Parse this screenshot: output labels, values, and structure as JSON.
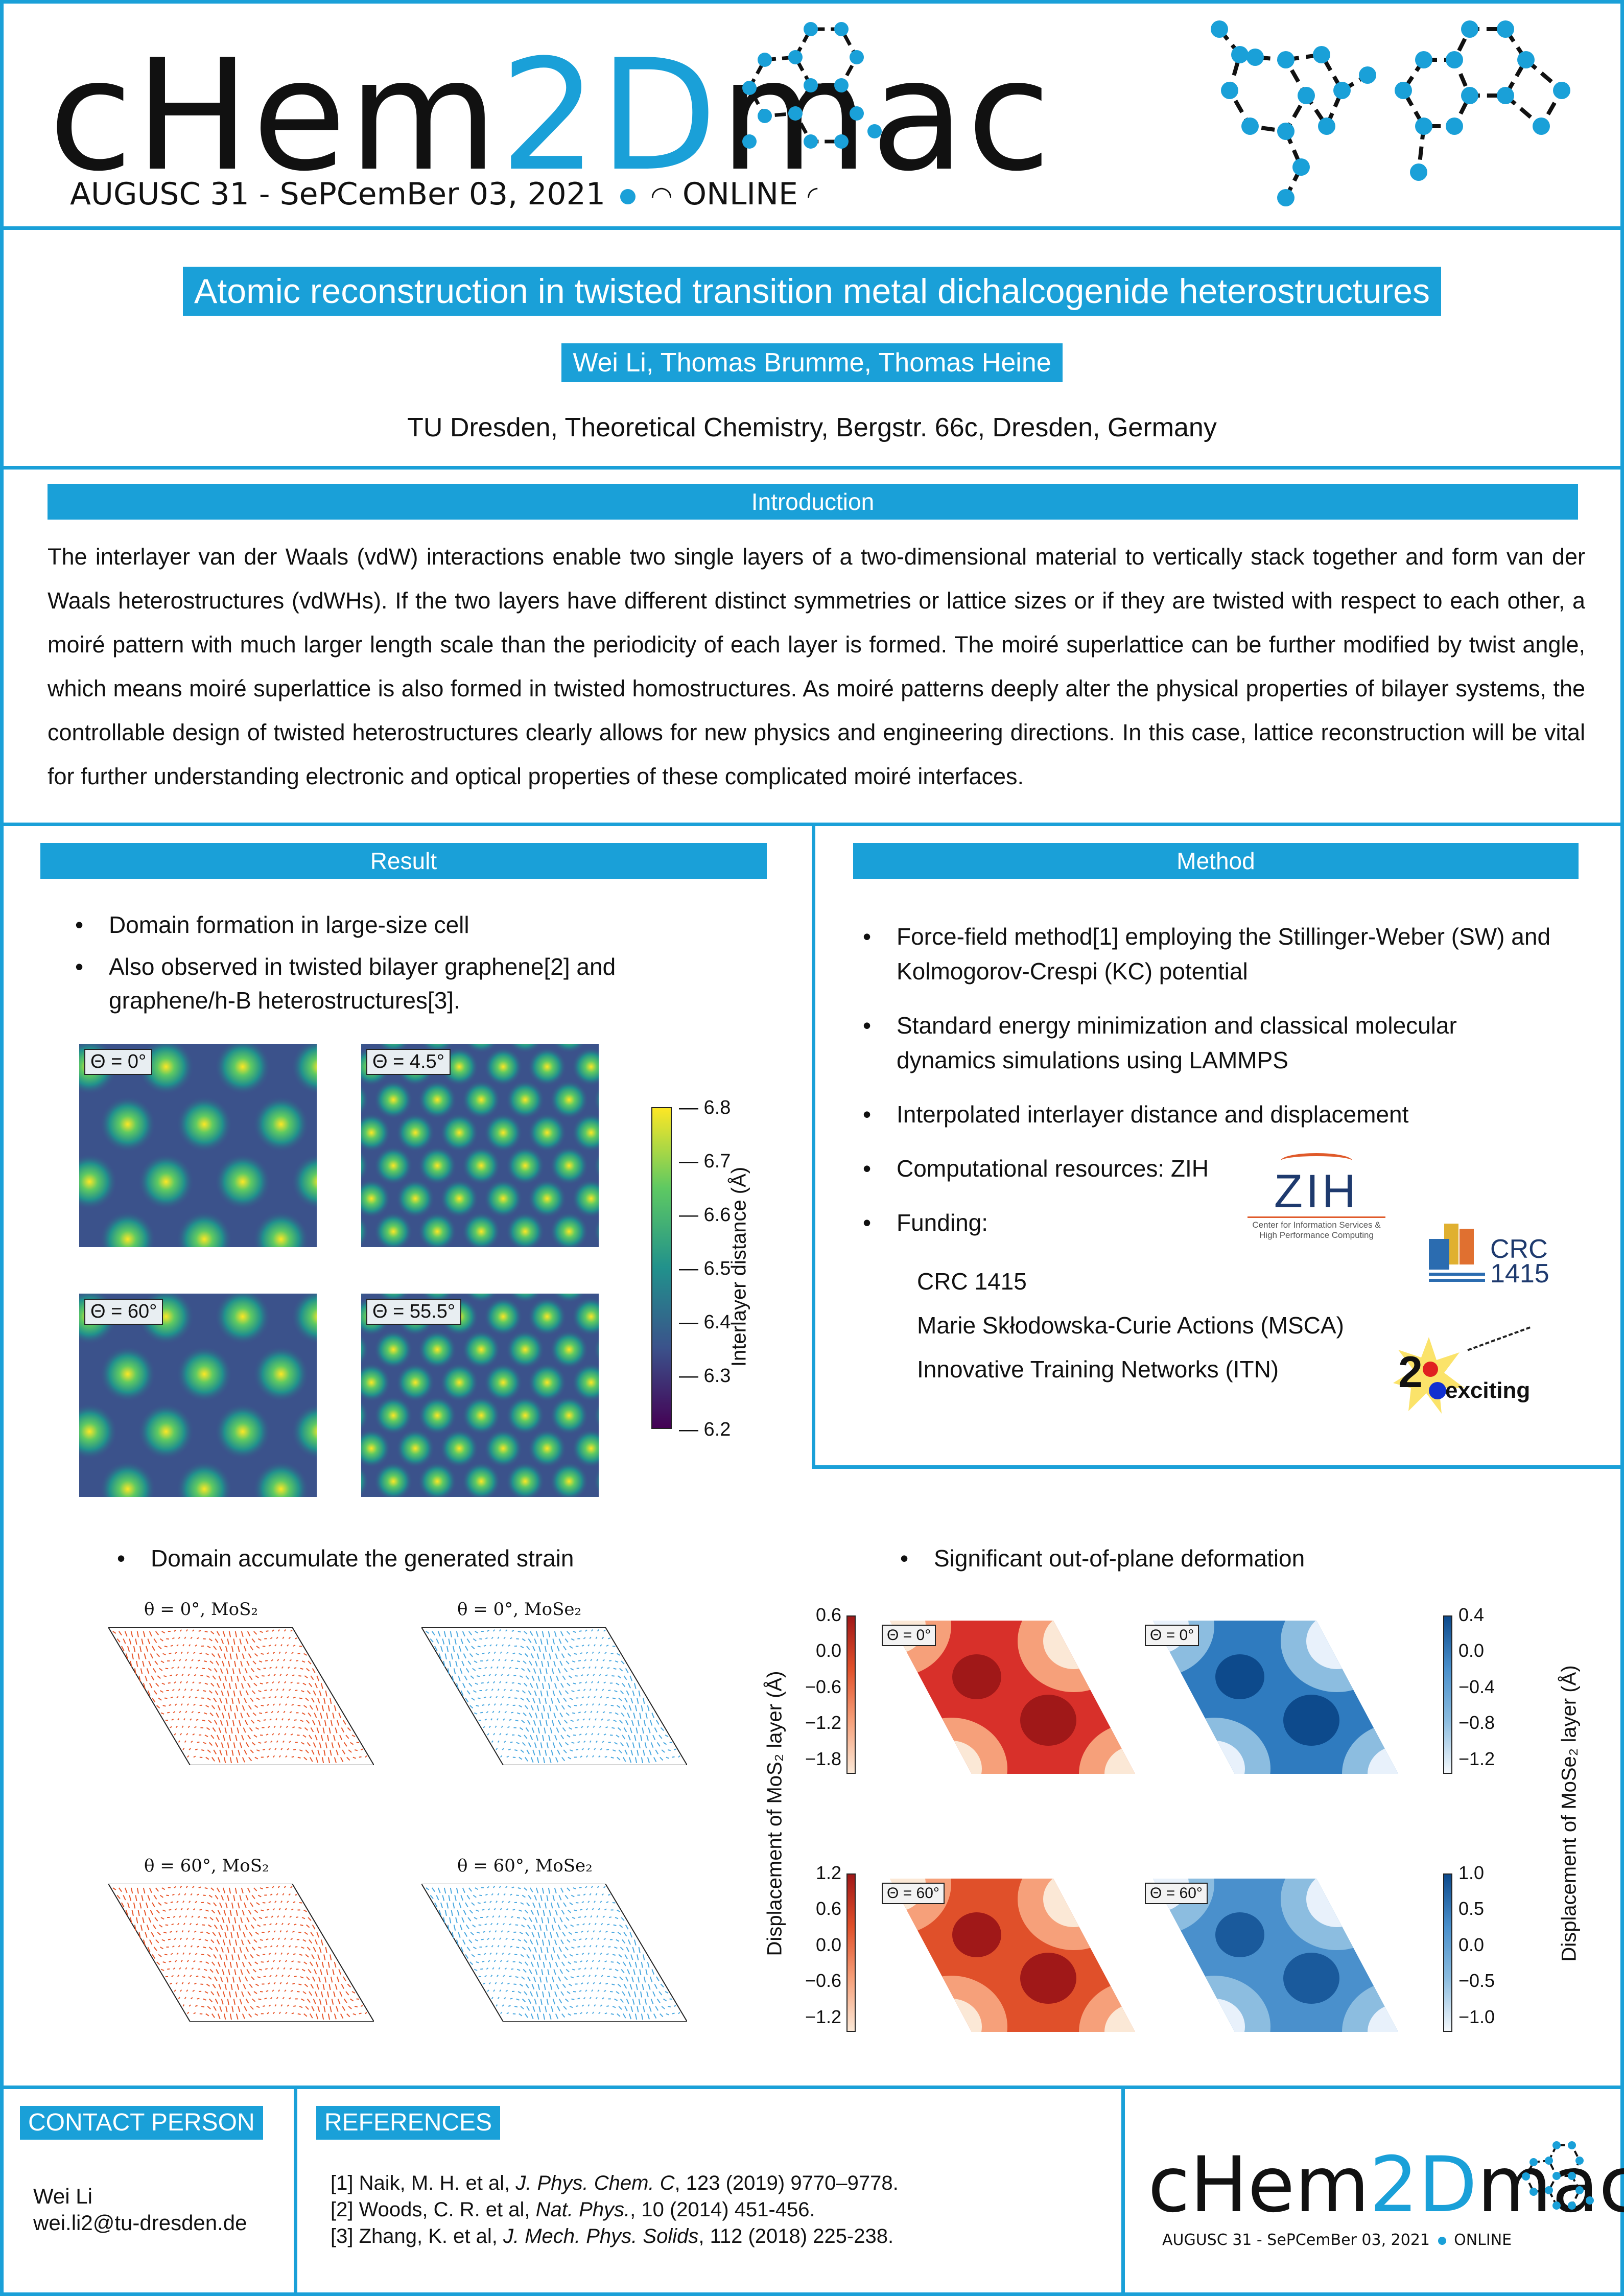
{
  "header": {
    "logo_part1": "cHem",
    "logo_part2": "2D",
    "logo_part3": "mac",
    "dates": "AUGUSC 31 - SePCemBer 03, 2021",
    "online": "ONLINE"
  },
  "title": "Atomic reconstruction in twisted transition metal dichalcogenide heterostructures",
  "authors": "Wei Li, Thomas Brumme, Thomas Heine",
  "affiliation": "TU Dresden, Theoretical Chemistry, Bergstr. 66c, Dresden, Germany",
  "intro": {
    "heading": "Introduction",
    "text": "The interlayer van der Waals (vdW) interactions enable two single layers of a two-dimensional material to vertically stack together and form van der Waals heterostructures (vdWHs). If the two layers have different distinct symmetries or lattice sizes or if they are twisted with respect to each other, a moiré pattern with much larger length scale than the periodicity of each layer is formed. The moiré superlattice can be further modified by twist angle, which means moiré superlattice is also formed in twisted homostructures. As moiré patterns deeply alter the physical properties of bilayer systems, the controllable design of twisted heterostructures clearly allows for new physics and engineering directions. In this case, lattice reconstruction will be vital for further understanding electronic and optical properties of these complicated moiré interfaces."
  },
  "result": {
    "heading": "Result",
    "bullets": [
      "Domain formation in large-size cell",
      "Also observed in twisted bilayer graphene[2] and graphene/h-B heterostructures[3]."
    ],
    "maps": [
      "Θ = 0°",
      "Θ = 4.5°",
      "Θ = 60°",
      "Θ = 55.5°"
    ],
    "colorbar_label": "Interlayer distance (Å)",
    "colorbar_ticks": [
      "6.8",
      "6.7",
      "6.6",
      "6.5",
      "6.4",
      "6.3",
      "6.2"
    ]
  },
  "method": {
    "heading": "Method",
    "bullets": [
      "Force-field method[1] employing the Stillinger-Weber (SW) and Kolmogorov-Crespi (KC) potential",
      "Standard energy minimization and classical molecular dynamics simulations using LAMMPS",
      "Interpolated interlayer distance and displacement",
      "Computational resources: ZIH",
      "Funding:"
    ],
    "funding": [
      "CRC 1415",
      "Marie Skłodowska-Curie Actions (MSCA)",
      "Innovative Training Networks (ITN)"
    ],
    "zih_logo": "ZIH",
    "zih_sub1": "Center for Information Services &",
    "zih_sub2": "High Performance Computing",
    "crc_logo1": "CRC",
    "crc_logo2": "1415",
    "exc_logo1": "2",
    "exc_logo2": "exciting"
  },
  "strain": {
    "bullet": "Domain accumulate the generated strain",
    "labels": [
      "θ = 0°, MoS₂",
      "θ = 0°, MoSe₂",
      "θ = 60°, MoS₂",
      "θ = 60°, MoSe₂"
    ]
  },
  "deform": {
    "bullet": "Significant out-of-plane deformation",
    "labels": [
      "Θ = 0°",
      "Θ = 0°",
      "Θ = 60°",
      "Θ = 60°"
    ],
    "left_axis": "Displacement of MoS₂ layer (Å)",
    "right_axis": "Displacement of MoSe₂ layer (Å)",
    "cb_tl": [
      "0.6",
      "0.0",
      "−0.6",
      "−1.2",
      "−1.8"
    ],
    "cb_tr": [
      "0.4",
      "0.0",
      "−0.4",
      "−0.8",
      "−1.2"
    ],
    "cb_bl": [
      "1.2",
      "0.6",
      "0.0",
      "−0.6",
      "−1.2"
    ],
    "cb_br": [
      "1.0",
      "0.5",
      "0.0",
      "−0.5",
      "−1.0"
    ]
  },
  "contact": {
    "heading": "CONTACT PERSON",
    "name": "Wei Li",
    "email": "wei.li2@tu-dresden.de"
  },
  "references": {
    "heading": "REFERENCES",
    "r1a": "[1] Naik, M. H. et al, ",
    "r1j": "J. Phys. Chem. C",
    "r1b": ", 123 (2019) 9770–9778.",
    "r2a": "[2] Woods, C. R. et al, ",
    "r2j": "Nat. Phys.",
    "r2b": ", 10 (2014) 451-456.",
    "r3a": "[3] Zhang, K. et al, ",
    "r3j": "J. Mech. Phys. Solids",
    "r3b": ", 112 (2018) 225-238."
  }
}
